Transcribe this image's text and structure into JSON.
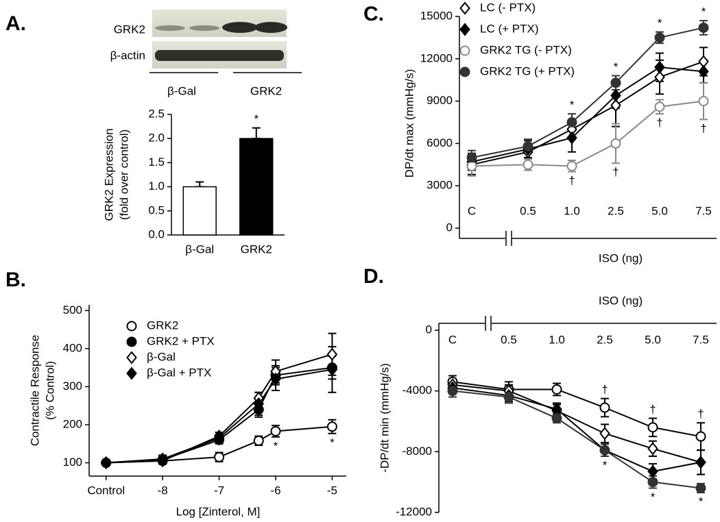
{
  "chart_data": [
    {
      "type": "bar",
      "panel_label": "A.",
      "blot": {
        "rows": [
          "GRK2",
          "β-actin"
        ],
        "lanes": [
          "β-Gal",
          "GRK2"
        ]
      },
      "ylabel": [
        "GRK2 Expression",
        "(fold over control)"
      ],
      "categories": [
        "β-Gal",
        "GRK2"
      ],
      "values": [
        1.0,
        2.0
      ],
      "errors": [
        0.1,
        0.22
      ],
      "colors": [
        "#ffffff",
        "#000000"
      ],
      "point_labels": [
        null,
        "*"
      ],
      "ylim": [
        0,
        2.5
      ],
      "yticks": [
        {
          "value": 0,
          "label": "0.0"
        },
        0.5,
        {
          "value": 1,
          "label": "1.0"
        },
        1.5,
        {
          "value": 2,
          "label": "2.0"
        },
        2.5
      ]
    },
    {
      "type": "line",
      "panel_label": "B.",
      "ylabel": [
        "Contractile Response",
        "(% Control)"
      ],
      "xlabel": "Log [Zinterol, M]",
      "x": [
        -9,
        -8,
        -7,
        -6.3,
        -6,
        -5
      ],
      "xlim": [
        -9.3,
        -4.75
      ],
      "xticks": [
        {
          "value": -9,
          "label": "Control"
        },
        -8,
        -7,
        -6,
        -5
      ],
      "ylim": [
        65,
        515
      ],
      "yticks": [
        100,
        200,
        300,
        400,
        500
      ],
      "legend": "upper left",
      "series": [
        {
          "name": "GRK2",
          "color": "#000000",
          "marker": "open-circle",
          "values": [
            100,
            105,
            115,
            158,
            183,
            195
          ],
          "errors": [
            5,
            8,
            12,
            12,
            15,
            18
          ],
          "point_labels": [
            null,
            null,
            null,
            null,
            "*",
            "*"
          ],
          "point_label_side": "below"
        },
        {
          "name": "GRK2 + PTX",
          "color": "#000000",
          "marker": "filled-circle",
          "values": [
            100,
            108,
            160,
            240,
            330,
            350
          ],
          "errors": [
            5,
            10,
            10,
            20,
            25,
            30
          ]
        },
        {
          "name": "β-Gal",
          "color": "#000000",
          "marker": "open-diamond",
          "values": [
            100,
            105,
            170,
            270,
            340,
            385
          ],
          "errors": [
            5,
            8,
            10,
            15,
            30,
            55
          ]
        },
        {
          "name": "β-Gal + PTX",
          "color": "#000000",
          "marker": "filled-diamond",
          "values": [
            100,
            110,
            165,
            255,
            320,
            345
          ],
          "errors": [
            5,
            10,
            10,
            30,
            30,
            60
          ]
        }
      ]
    },
    {
      "type": "line",
      "panel_label": "C.",
      "ylabel": [
        "DP/dt max (mmHg/s)"
      ],
      "xlabel": "ISO (ng)",
      "categories": [
        "C",
        "0.5",
        "1.0",
        "2.5",
        "5.0",
        "7.5"
      ],
      "ylim": [
        0,
        15000
      ],
      "yticks": [
        0,
        3000,
        6000,
        9000,
        12000,
        15000
      ],
      "legend": "upper left",
      "series": [
        {
          "name": "LC (- PTX)",
          "color": "#000000",
          "marker": "open-diamond",
          "values": [
            4500,
            5400,
            7000,
            8700,
            10700,
            11800
          ],
          "errors": [
            700,
            500,
            700,
            1500,
            1200,
            1000
          ]
        },
        {
          "name": "LC (+ PTX)",
          "color": "#000000",
          "marker": "filled-diamond",
          "values": [
            4700,
            5600,
            6400,
            9400,
            11400,
            11100
          ],
          "errors": [
            600,
            600,
            1000,
            900,
            1000,
            800
          ]
        },
        {
          "name": "GRK2 TG (- PTX)",
          "color": "#888888",
          "marker": "open-circle",
          "values": [
            4400,
            4500,
            4400,
            6000,
            8600,
            9000
          ],
          "errors": [
            700,
            400,
            400,
            1400,
            500,
            1300
          ],
          "point_labels": [
            null,
            null,
            "†",
            "†",
            "†",
            "†"
          ],
          "point_label_side": "below"
        },
        {
          "name": "GRK2 TG (+ PTX)",
          "color": "#333333",
          "marker": "filled-circle",
          "values": [
            5000,
            5800,
            7500,
            10300,
            13500,
            14200
          ],
          "errors": [
            500,
            500,
            600,
            500,
            400,
            500
          ],
          "point_labels": [
            null,
            null,
            "*",
            "*",
            "*",
            "*"
          ],
          "point_label_side": "above"
        }
      ]
    },
    {
      "type": "line",
      "panel_label": "D.",
      "ylabel": [
        "-DP/dt min (mmHg/s)"
      ],
      "xlabel": "ISO (ng)",
      "categories": [
        "C",
        "0.5",
        "1.0",
        "2.5",
        "5.0",
        "7.5"
      ],
      "ylim": [
        -12000,
        0
      ],
      "yticks": [
        0,
        -4000,
        -8000,
        -12000
      ],
      "series": [
        {
          "name": "GRK2 TG (- PTX)",
          "color": "#000000",
          "marker": "open-circle",
          "values": [
            -3400,
            -3900,
            -3900,
            -5100,
            -6400,
            -7000
          ],
          "errors": [
            400,
            500,
            400,
            600,
            600,
            900
          ],
          "point_labels": [
            null,
            null,
            null,
            "†",
            "†",
            "†"
          ],
          "point_label_side": "above"
        },
        {
          "name": "LC (- PTX)",
          "color": "#000000",
          "marker": "open-diamond",
          "values": [
            -3600,
            -4000,
            -5300,
            -6800,
            -7800,
            -8700
          ],
          "errors": [
            400,
            400,
            400,
            600,
            500,
            800
          ]
        },
        {
          "name": "LC (+ PTX)",
          "color": "#000000",
          "marker": "filled-diamond",
          "values": [
            -3800,
            -4300,
            -5200,
            -7900,
            -9300,
            -8700
          ],
          "errors": [
            400,
            400,
            400,
            400,
            500,
            800
          ]
        },
        {
          "name": "GRK2 TG (+ PTX)",
          "color": "#333333",
          "marker": "filled-circle",
          "values": [
            -4000,
            -4400,
            -5800,
            -7900,
            -10000,
            -10400
          ],
          "errors": [
            400,
            400,
            300,
            400,
            400,
            300
          ],
          "point_labels": [
            null,
            null,
            null,
            "*",
            "*",
            "*"
          ],
          "point_label_side": "below"
        }
      ]
    }
  ]
}
